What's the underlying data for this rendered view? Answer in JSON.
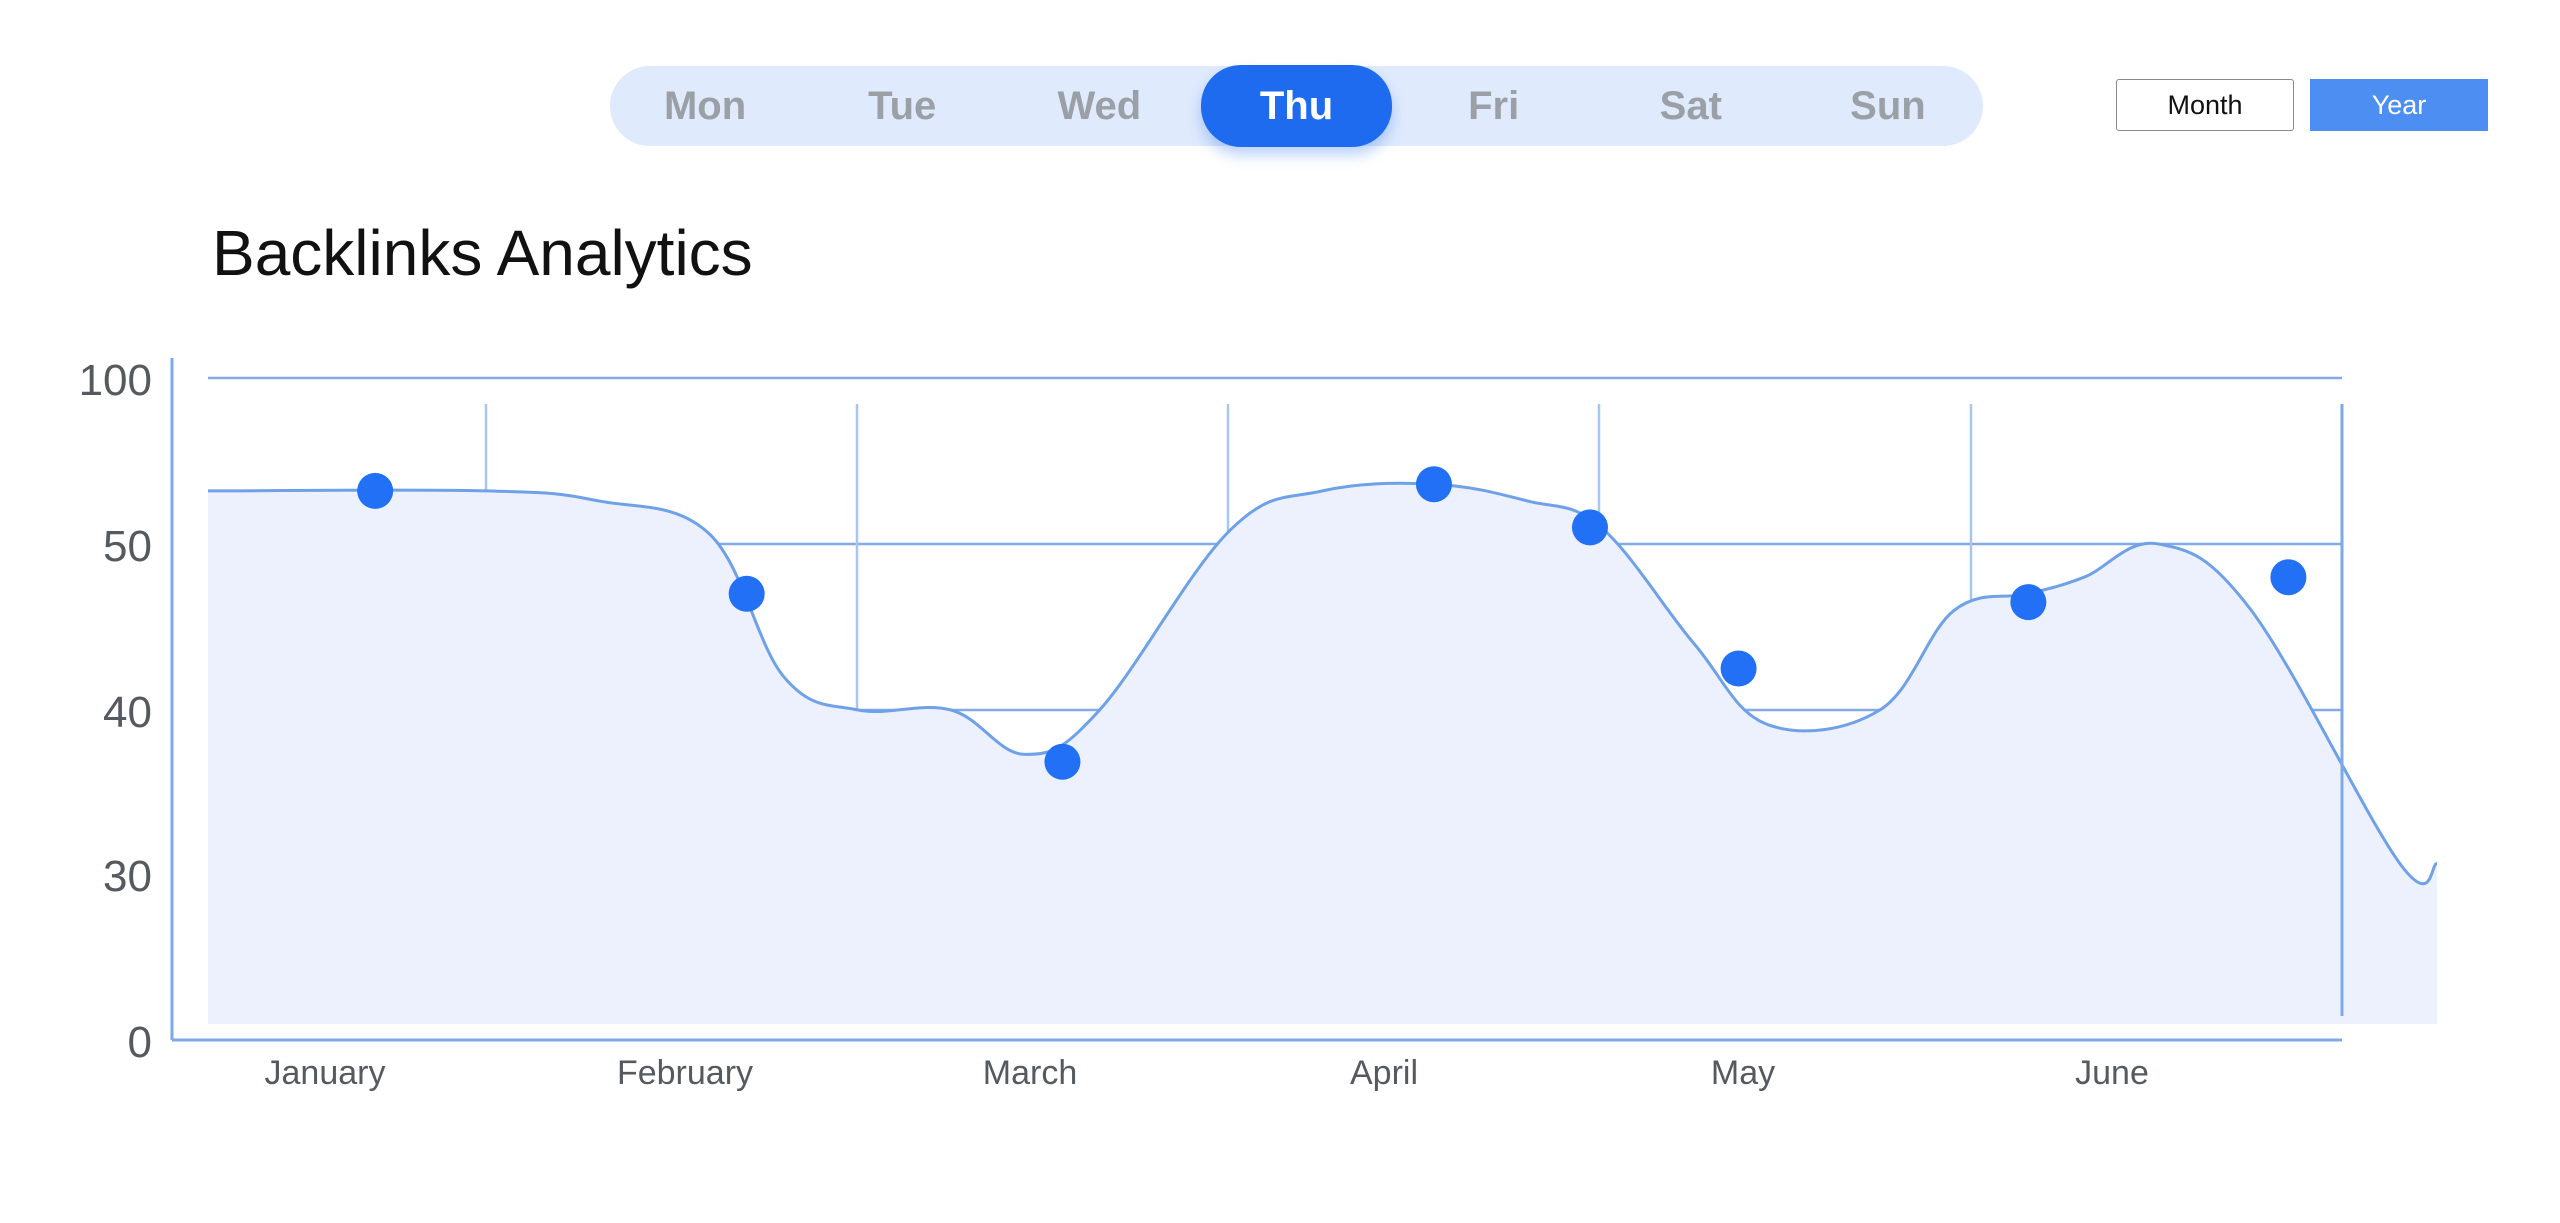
{
  "day_tabs": [
    {
      "label": "Mon",
      "active": false
    },
    {
      "label": "Tue",
      "active": false
    },
    {
      "label": "Wed",
      "active": false
    },
    {
      "label": "Thu",
      "active": true
    },
    {
      "label": "Fri",
      "active": false
    },
    {
      "label": "Sat",
      "active": false
    },
    {
      "label": "Sun",
      "active": false
    }
  ],
  "period_toggle": {
    "month_label": "Month",
    "year_label": "Year",
    "selected": "Year"
  },
  "colors": {
    "accent": "#1f6bf0",
    "day_bar_bg": "#dfeafc",
    "year_button": "#4c8ef2",
    "line": "#6fa1e8",
    "area_fill": "#edf1fd",
    "point": "#2270f5",
    "axis": "#7ea9e8"
  },
  "chart_data": {
    "type": "area",
    "title": "Backlinks Analytics",
    "xlabel": "",
    "ylabel": "",
    "categories": [
      "January",
      "February",
      "March",
      "April",
      "May",
      "June"
    ],
    "y_ticks": [
      "0",
      "30",
      "40",
      "50",
      "100"
    ],
    "grid": true,
    "legend": "none",
    "series": [
      {
        "line_points": [
          [
            0.0,
            66
          ],
          [
            0.75,
            66
          ],
          [
            1.05,
            63
          ],
          [
            1.35,
            53
          ],
          [
            1.55,
            42
          ],
          [
            1.75,
            40
          ],
          [
            2.0,
            40
          ],
          [
            2.2,
            37
          ],
          [
            2.4,
            40
          ],
          [
            2.75,
            54
          ],
          [
            3.0,
            66
          ],
          [
            3.3,
            68
          ],
          [
            3.55,
            63
          ],
          [
            3.75,
            55
          ],
          [
            4.0,
            44
          ],
          [
            4.2,
            39
          ],
          [
            4.5,
            40
          ],
          [
            4.7,
            46
          ],
          [
            4.9,
            47
          ],
          [
            5.05,
            48
          ],
          [
            5.25,
            50
          ],
          [
            5.5,
            46
          ],
          [
            5.9,
            29
          ],
          [
            6.0,
            29
          ]
        ],
        "markers": [
          [
            0.45,
            66
          ],
          [
            1.45,
            47
          ],
          [
            2.3,
            36.5
          ],
          [
            3.3,
            68
          ],
          [
            3.72,
            55
          ],
          [
            4.12,
            42.5
          ],
          [
            4.9,
            46.5
          ],
          [
            5.6,
            48
          ]
        ]
      }
    ]
  }
}
